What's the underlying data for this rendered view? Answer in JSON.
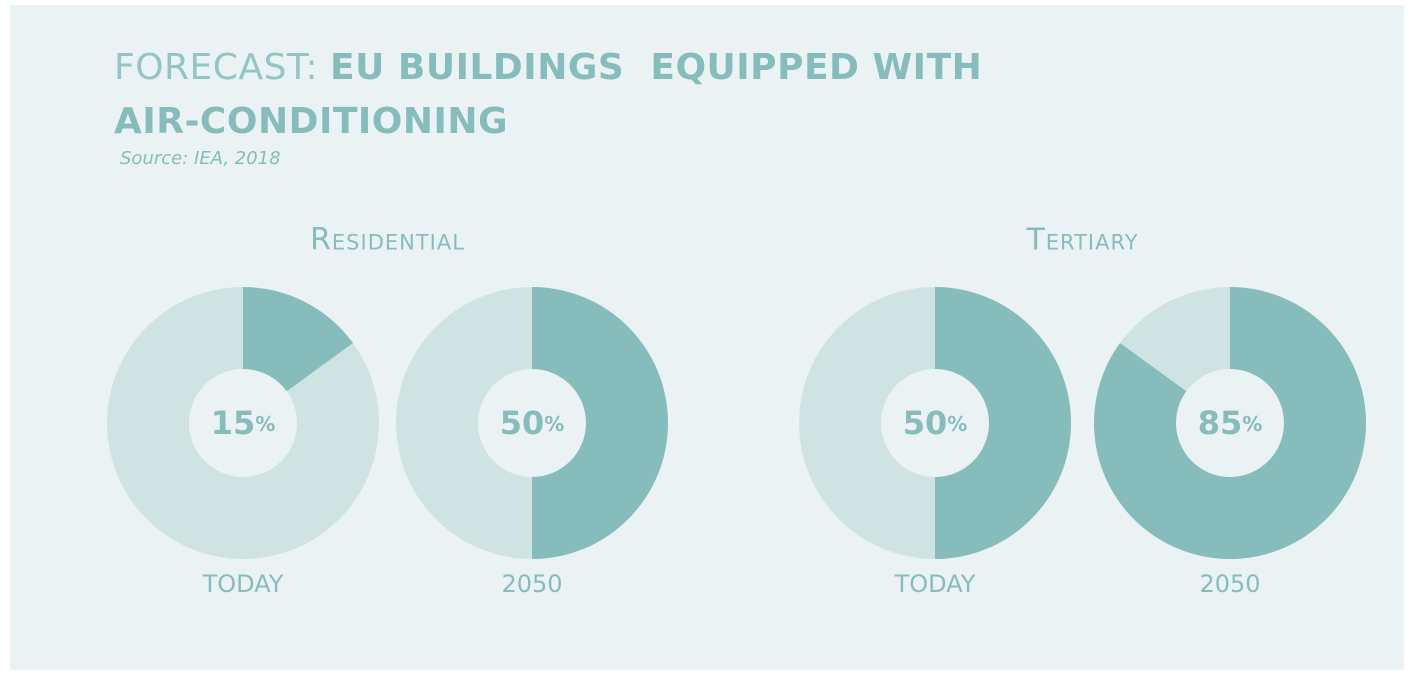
{
  "title_light": "FORECAST:",
  "title_bold": [
    "EU BUILDINGS  EQUIPPED WITH",
    "AIR-CONDITIONING"
  ],
  "source": "Source: IEA, 2018",
  "chart_data": [
    {
      "type": "donut",
      "group": "Residential",
      "label": "TODAY",
      "values": [
        15
      ],
      "unit": "%",
      "color": "#86bcbc",
      "rest_color": "#cfe3e3"
    },
    {
      "type": "donut",
      "group": "Residential",
      "label": "2050",
      "values": [
        50
      ],
      "unit": "%",
      "color": "#86bcbc",
      "rest_color": "#cfe3e3"
    },
    {
      "type": "donut",
      "group": "Tertiary",
      "label": "TODAY",
      "values": [
        50
      ],
      "unit": "%",
      "color": "#86bcbc",
      "rest_color": "#cfe3e3"
    },
    {
      "type": "donut",
      "group": "Tertiary",
      "label": "2050",
      "values": [
        85
      ],
      "unit": "%",
      "color": "#86bcbc",
      "rest_color": "#cfe3e3"
    }
  ]
}
